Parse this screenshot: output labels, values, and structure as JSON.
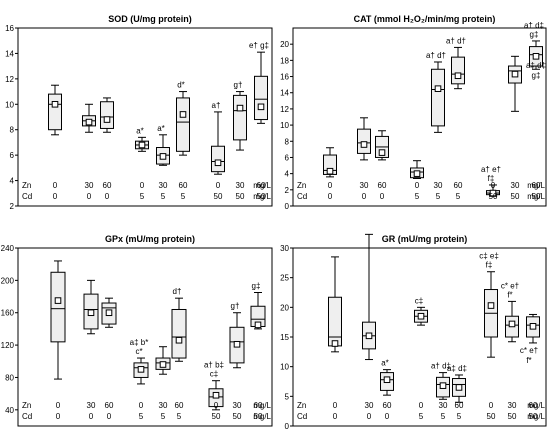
{
  "chart_data": [
    {
      "type": "box",
      "title": "SOD (U/mg protein)",
      "ylim": [
        2,
        16
      ],
      "yticks": [
        2,
        4,
        6,
        8,
        10,
        12,
        14,
        16
      ],
      "zn_row": {
        "label": "Zn",
        "values": [
          "0",
          "30",
          "60",
          "0",
          "30",
          "60",
          "0",
          "30",
          "60"
        ],
        "unit": "mg/L"
      },
      "cd_row": {
        "label": "Cd",
        "values": [
          "0",
          "0",
          "0",
          "5",
          "5",
          "5",
          "50",
          "50",
          "50"
        ],
        "unit": "mg/L"
      },
      "boxes": [
        {
          "whisker_low": 7.6,
          "q1": 8.0,
          "median": 10.0,
          "q3": 10.8,
          "whisker_high": 11.5,
          "mean": 10.0,
          "annotation": []
        },
        {
          "whisker_low": 7.8,
          "q1": 8.3,
          "median": 8.7,
          "q3": 9.1,
          "whisker_high": 10.0,
          "mean": 8.6,
          "annotation": []
        },
        {
          "whisker_low": 7.8,
          "q1": 8.1,
          "median": 9.0,
          "q3": 10.2,
          "whisker_high": 10.5,
          "mean": 8.8,
          "annotation": []
        },
        {
          "whisker_low": 6.3,
          "q1": 6.5,
          "median": 6.8,
          "q3": 7.1,
          "whisker_high": 7.4,
          "mean": 6.8,
          "annotation": [
            "a*"
          ]
        },
        {
          "whisker_low": 5.2,
          "q1": 5.3,
          "median": 6.0,
          "q3": 6.6,
          "whisker_high": 7.6,
          "mean": 5.9,
          "annotation": [
            "a*"
          ]
        },
        {
          "whisker_low": 6.0,
          "q1": 6.3,
          "median": 8.6,
          "q3": 10.5,
          "whisker_high": 11.0,
          "mean": 9.2,
          "annotation": [
            "d*"
          ]
        },
        {
          "whisker_low": 4.5,
          "q1": 4.7,
          "median": 5.5,
          "q3": 6.7,
          "whisker_high": 9.4,
          "mean": 5.4,
          "annotation": [
            "a†"
          ]
        },
        {
          "whisker_low": 6.4,
          "q1": 7.2,
          "median": 9.5,
          "q3": 10.7,
          "whisker_high": 11.0,
          "mean": 9.7,
          "annotation": [
            "g†"
          ]
        },
        {
          "whisker_low": 8.5,
          "q1": 8.8,
          "median": 10.4,
          "q3": 12.2,
          "whisker_high": 14.1,
          "mean": 9.8,
          "annotation": [
            "e† g‡"
          ]
        }
      ]
    },
    {
      "type": "box",
      "title": "CAT (mmol H₂O₂/min/mg protein)",
      "ylim": [
        0,
        22
      ],
      "yticks": [
        0,
        2,
        4,
        6,
        8,
        10,
        12,
        14,
        16,
        18,
        20
      ],
      "zn_row": {
        "label": "Zn",
        "values": [
          "0",
          "30",
          "60",
          "0",
          "30",
          "60",
          "0",
          "30",
          "60"
        ],
        "unit": "mg/L"
      },
      "cd_row": {
        "label": "Cd",
        "values": [
          "0",
          "0",
          "0",
          "5",
          "5",
          "5",
          "50",
          "50",
          "50"
        ],
        "unit": "mg/L"
      },
      "boxes": [
        {
          "whisker_low": 3.6,
          "q1": 3.9,
          "median": 4.4,
          "q3": 6.3,
          "whisker_high": 7.2,
          "mean": 4.3,
          "annotation": []
        },
        {
          "whisker_low": 5.7,
          "q1": 6.5,
          "median": 7.8,
          "q3": 9.5,
          "whisker_high": 10.9,
          "mean": 7.6,
          "annotation": []
        },
        {
          "whisker_low": 5.7,
          "q1": 6.0,
          "median": 7.3,
          "q3": 8.6,
          "whisker_high": 9.3,
          "mean": 6.6,
          "annotation": []
        },
        {
          "whisker_low": 3.4,
          "q1": 3.5,
          "median": 4.2,
          "q3": 4.7,
          "whisker_high": 5.6,
          "mean": 4.0,
          "annotation": []
        },
        {
          "whisker_low": 9.1,
          "q1": 9.9,
          "median": 14.4,
          "q3": 16.9,
          "whisker_high": 17.8,
          "mean": 14.5,
          "annotation": [
            "a† d†"
          ]
        },
        {
          "whisker_low": 14.5,
          "q1": 15.1,
          "median": 16.3,
          "q3": 18.4,
          "whisker_high": 19.6,
          "mean": 16.1,
          "annotation": [
            "a† d†"
          ]
        },
        {
          "whisker_low": 1.2,
          "q1": 1.4,
          "median": 1.6,
          "q3": 1.9,
          "whisker_high": 2.6,
          "mean": 1.6,
          "annotation": [
            "a† e†",
            "f‡"
          ]
        },
        {
          "whisker_low": 11.7,
          "q1": 15.2,
          "median": 16.7,
          "q3": 17.3,
          "whisker_high": 18.5,
          "mean": 16.3,
          "annotation": []
        },
        {
          "whisker_low": 16.9,
          "q1": 17.3,
          "median": 18.7,
          "q3": 19.7,
          "whisker_high": 20.4,
          "mean": 18.5,
          "annotation": [
            "a† d‡",
            "g‡"
          ]
        }
      ],
      "extra_annotations": [
        {
          "text": "a‡ d‡",
          "near_box": 9
        },
        {
          "text": "g‡",
          "near_box": 9
        }
      ]
    },
    {
      "type": "box",
      "title": "GPx (mU/mg protein)",
      "ylim": [
        20,
        240
      ],
      "yticks": [
        40,
        80,
        120,
        160,
        200,
        240
      ],
      "zn_row": {
        "label": "Zn",
        "values": [
          "0",
          "30",
          "60",
          "0",
          "30",
          "60",
          "0",
          "30",
          "60"
        ],
        "unit": "mg/L"
      },
      "cd_row": {
        "label": "Cd",
        "values": [
          "0",
          "0",
          "0",
          "5",
          "5",
          "5",
          "50",
          "50",
          "50"
        ],
        "unit": "mg/L"
      },
      "boxes": [
        {
          "whisker_low": 78,
          "q1": 124,
          "median": 165,
          "q3": 210,
          "whisker_high": 224,
          "mean": 175,
          "annotation": []
        },
        {
          "whisker_low": 134,
          "q1": 140,
          "median": 164,
          "q3": 183,
          "whisker_high": 200,
          "mean": 160,
          "annotation": []
        },
        {
          "whisker_low": 142,
          "q1": 146,
          "median": 166,
          "q3": 172,
          "whisker_high": 178,
          "mean": 160,
          "annotation": []
        },
        {
          "whisker_low": 72,
          "q1": 80,
          "median": 92,
          "q3": 98,
          "whisker_high": 104,
          "mean": 90,
          "annotation": [
            "a‡ b*",
            "c*"
          ]
        },
        {
          "whisker_low": 84,
          "q1": 90,
          "median": 98,
          "q3": 104,
          "whisker_high": 118,
          "mean": 96,
          "annotation": []
        },
        {
          "whisker_low": 100,
          "q1": 104,
          "median": 130,
          "q3": 164,
          "whisker_high": 178,
          "mean": 126,
          "annotation": [
            "d†"
          ]
        },
        {
          "whisker_low": 40,
          "q1": 44,
          "median": 56,
          "q3": 66,
          "whisker_high": 76,
          "mean": 58,
          "annotation": [
            "a† b‡",
            "c‡"
          ]
        },
        {
          "whisker_low": 92,
          "q1": 98,
          "median": 124,
          "q3": 142,
          "whisker_high": 160,
          "mean": 121,
          "annotation": [
            "g†"
          ]
        },
        {
          "whisker_low": 140,
          "q1": 143,
          "median": 152,
          "q3": 168,
          "whisker_high": 185,
          "mean": 145,
          "annotation": [
            "g‡"
          ]
        }
      ]
    },
    {
      "type": "box",
      "title": "GR (mU/mg protein)",
      "ylim": [
        0,
        30
      ],
      "yticks": [
        0,
        5,
        10,
        15,
        20,
        25,
        30
      ],
      "zn_row": {
        "label": "Zn",
        "values": [
          "0",
          "30",
          "60",
          "0",
          "30",
          "60",
          "0",
          "30",
          "60"
        ],
        "unit": "mg/L"
      },
      "cd_row": {
        "label": "Cd",
        "values": [
          "0",
          "0",
          "0",
          "5",
          "5",
          "5",
          "50",
          "50",
          "50"
        ],
        "unit": "mg/L"
      },
      "boxes": [
        {
          "whisker_low": 12.5,
          "q1": 13.5,
          "median": 15.0,
          "q3": 21.7,
          "whisker_high": 28.5,
          "mean": 13.9,
          "annotation": []
        },
        {
          "whisker_low": 11.2,
          "q1": 13.0,
          "median": 15.2,
          "q3": 17.5,
          "whisker_high": 32.3,
          "mean": 15.2,
          "annotation": []
        },
        {
          "whisker_low": 5.2,
          "q1": 6.0,
          "median": 7.8,
          "q3": 9.0,
          "whisker_high": 9.5,
          "mean": 7.8,
          "annotation": [
            "a*"
          ]
        },
        {
          "whisker_low": 17.0,
          "q1": 17.5,
          "median": 18.5,
          "q3": 19.5,
          "whisker_high": 20.0,
          "mean": 18.5,
          "annotation": [
            "c‡"
          ]
        },
        {
          "whisker_low": 4.5,
          "q1": 4.9,
          "median": 7.0,
          "q3": 8.2,
          "whisker_high": 9.0,
          "mean": 6.8,
          "annotation": [
            "a† d‡"
          ]
        },
        {
          "whisker_low": 4.0,
          "q1": 5.0,
          "median": 7.0,
          "q3": 8.0,
          "whisker_high": 8.6,
          "mean": 6.5,
          "annotation": [
            "a‡ d‡"
          ]
        },
        {
          "whisker_low": 11.6,
          "q1": 15.0,
          "median": 19.0,
          "q3": 23.0,
          "whisker_high": 26.0,
          "mean": 20.3,
          "annotation": [
            "c‡ e‡",
            "f‡"
          ]
        },
        {
          "whisker_low": 14.2,
          "q1": 15.0,
          "median": 17.0,
          "q3": 18.5,
          "whisker_high": 21.0,
          "mean": 17.2,
          "annotation": [
            "c* e†",
            "f*"
          ]
        },
        {
          "whisker_low": 14.0,
          "q1": 15.0,
          "median": 17.0,
          "q3": 18.4,
          "whisker_high": 18.8,
          "mean": 16.8,
          "annotation": []
        }
      ],
      "extra_annotations": [
        {
          "text": "c* e†",
          "near_box": 9,
          "below": true
        },
        {
          "text": "f*",
          "near_box": 9,
          "below": true
        }
      ]
    }
  ]
}
